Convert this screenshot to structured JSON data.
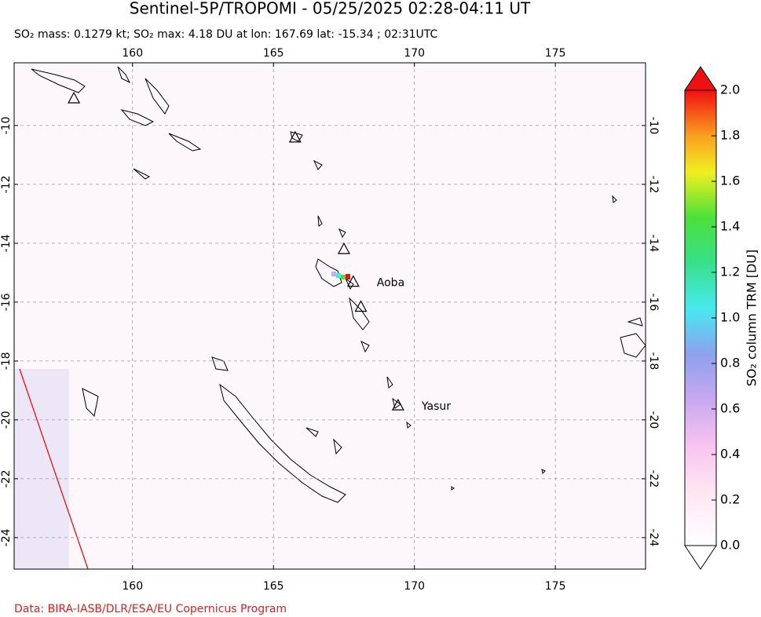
{
  "title": "Sentinel-5P/TROPOMI - 05/25/2025 02:28-04:11 UT",
  "subtitle": "SO₂ mass: 0.1279 kt; SO₂ max: 4.18 DU at lon: 167.69 lat: -15.34 ; 02:31UTC",
  "credit": "Data: BIRA-IASB/DLR/ESA/EU Copernicus Program",
  "map": {
    "lonlim": [
      155.8,
      178.2
    ],
    "latlim": [
      -25.07,
      -7.87
    ],
    "lon_ticks": [
      160,
      165,
      170,
      175
    ],
    "lat_ticks": [
      -10,
      -12,
      -14,
      -16,
      -18,
      -20,
      -22,
      -24
    ],
    "volcanoes": [
      {
        "lon": 157.92,
        "lat": -9.07
      },
      {
        "lon": 165.77,
        "lat": -10.4
      },
      {
        "lon": 167.5,
        "lat": -14.19
      },
      {
        "name": "Aoba",
        "lon": 167.83,
        "lat": -15.3
      },
      {
        "lon": 168.1,
        "lat": -16.15
      },
      {
        "name": "Yasur",
        "lon": 169.42,
        "lat": -19.5
      }
    ]
  },
  "colorbar": {
    "label": "SO₂ column TRM [DU]",
    "lim": [
      0,
      2
    ],
    "ticks": [
      {
        "value": 0,
        "label": "0.0"
      },
      {
        "value": 0.2,
        "label": "0.2"
      },
      {
        "value": 0.4,
        "label": "0.4"
      },
      {
        "value": 0.6,
        "label": "0.6"
      },
      {
        "value": 0.8,
        "label": "0.8"
      },
      {
        "value": 1,
        "label": "1.0"
      },
      {
        "value": 1.2,
        "label": "1.2"
      },
      {
        "value": 1.4,
        "label": "1.4"
      },
      {
        "value": 1.6,
        "label": "1.6"
      },
      {
        "value": 1.8,
        "label": "1.8"
      },
      {
        "value": 2,
        "label": "2.0"
      }
    ]
  }
}
